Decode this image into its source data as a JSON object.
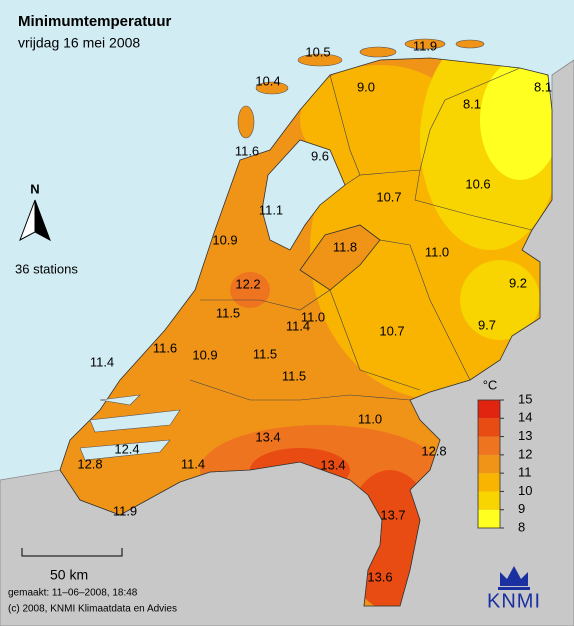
{
  "header": {
    "title": "Minimumtemperatuur",
    "subtitle": "vrijdag 16 mei 2008"
  },
  "stations": [
    "10.5",
    "11.9",
    "10.4",
    "9.0",
    "8.1",
    "8.1",
    "11.6",
    "9.6",
    "10.7",
    "10.6",
    "11.1",
    "10.9",
    "11.8",
    "11.0",
    "9.2",
    "12.2",
    "11.5",
    "11.0",
    "11.4",
    "10.7",
    "9.7",
    "11.4",
    "11.6",
    "10.9",
    "11.5",
    "11.5",
    "11.0",
    "12.4",
    "13.4",
    "12.8",
    "12.8",
    "11.4",
    "13.4",
    "11.9",
    "13.7",
    "13.6"
  ],
  "north_arrow": "N",
  "station_count": "36 stations",
  "legend": {
    "unit": "°C",
    "ticks": [
      8,
      9,
      10,
      11,
      12,
      13,
      14,
      15
    ],
    "colors": [
      "#ffff20",
      "#f8d400",
      "#f8b400",
      "#f09418",
      "#ee7420",
      "#e84c12",
      "#e02410"
    ]
  },
  "scale_bar": "50 km",
  "footer": {
    "made": "gemaakt: 11–06–2008, 18:48",
    "copyright": "(c) 2008, KNMI Klimaatdata en Advies"
  },
  "logo": "KNMI"
}
